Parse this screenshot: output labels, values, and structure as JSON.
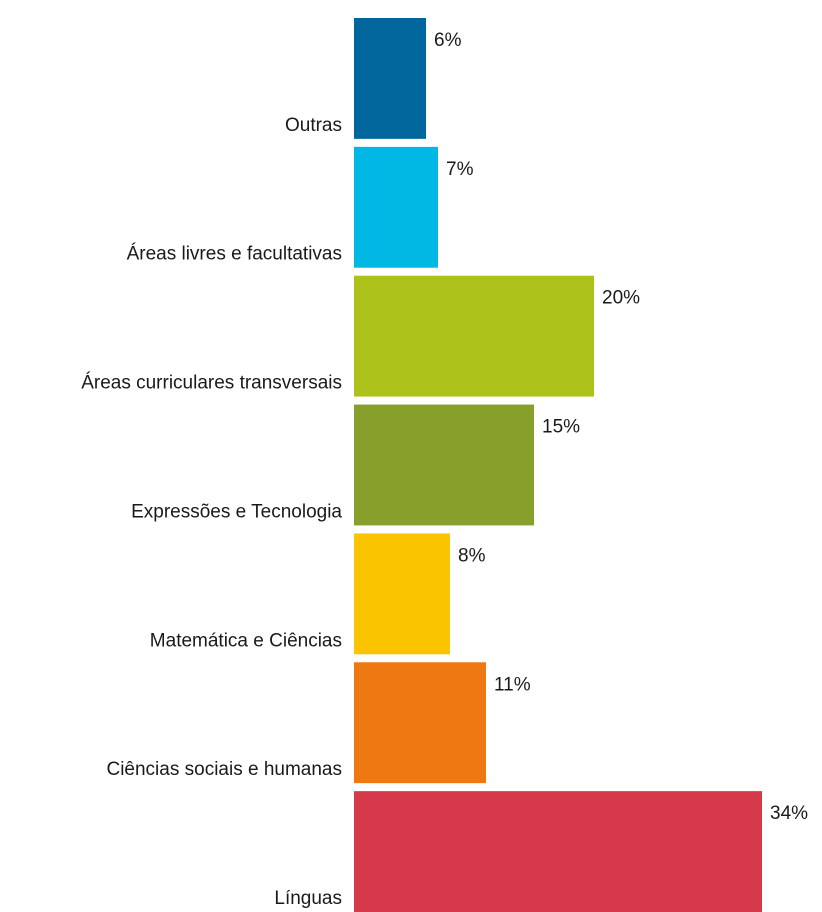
{
  "chart_data": {
    "type": "bar",
    "orientation": "horizontal",
    "categories": [
      "Outras",
      "Áreas livres e facultativas",
      "Áreas curriculares transversais",
      "Expressões e Tecnologia",
      "Matemática e Ciências",
      "Ciências sociais e humanas",
      "Línguas"
    ],
    "values": [
      6,
      7,
      20,
      15,
      8,
      11,
      34
    ],
    "value_labels": [
      "6%",
      "7%",
      "20%",
      "15%",
      "8%",
      "11%",
      "34%"
    ],
    "colors": [
      "#00669c",
      "#00b8e3",
      "#acc11a",
      "#87a02b",
      "#fbc400",
      "#ee7811",
      "#d63a4a"
    ],
    "unit": "%",
    "xlim": [
      0,
      34
    ],
    "grid": false,
    "legend": "none"
  }
}
